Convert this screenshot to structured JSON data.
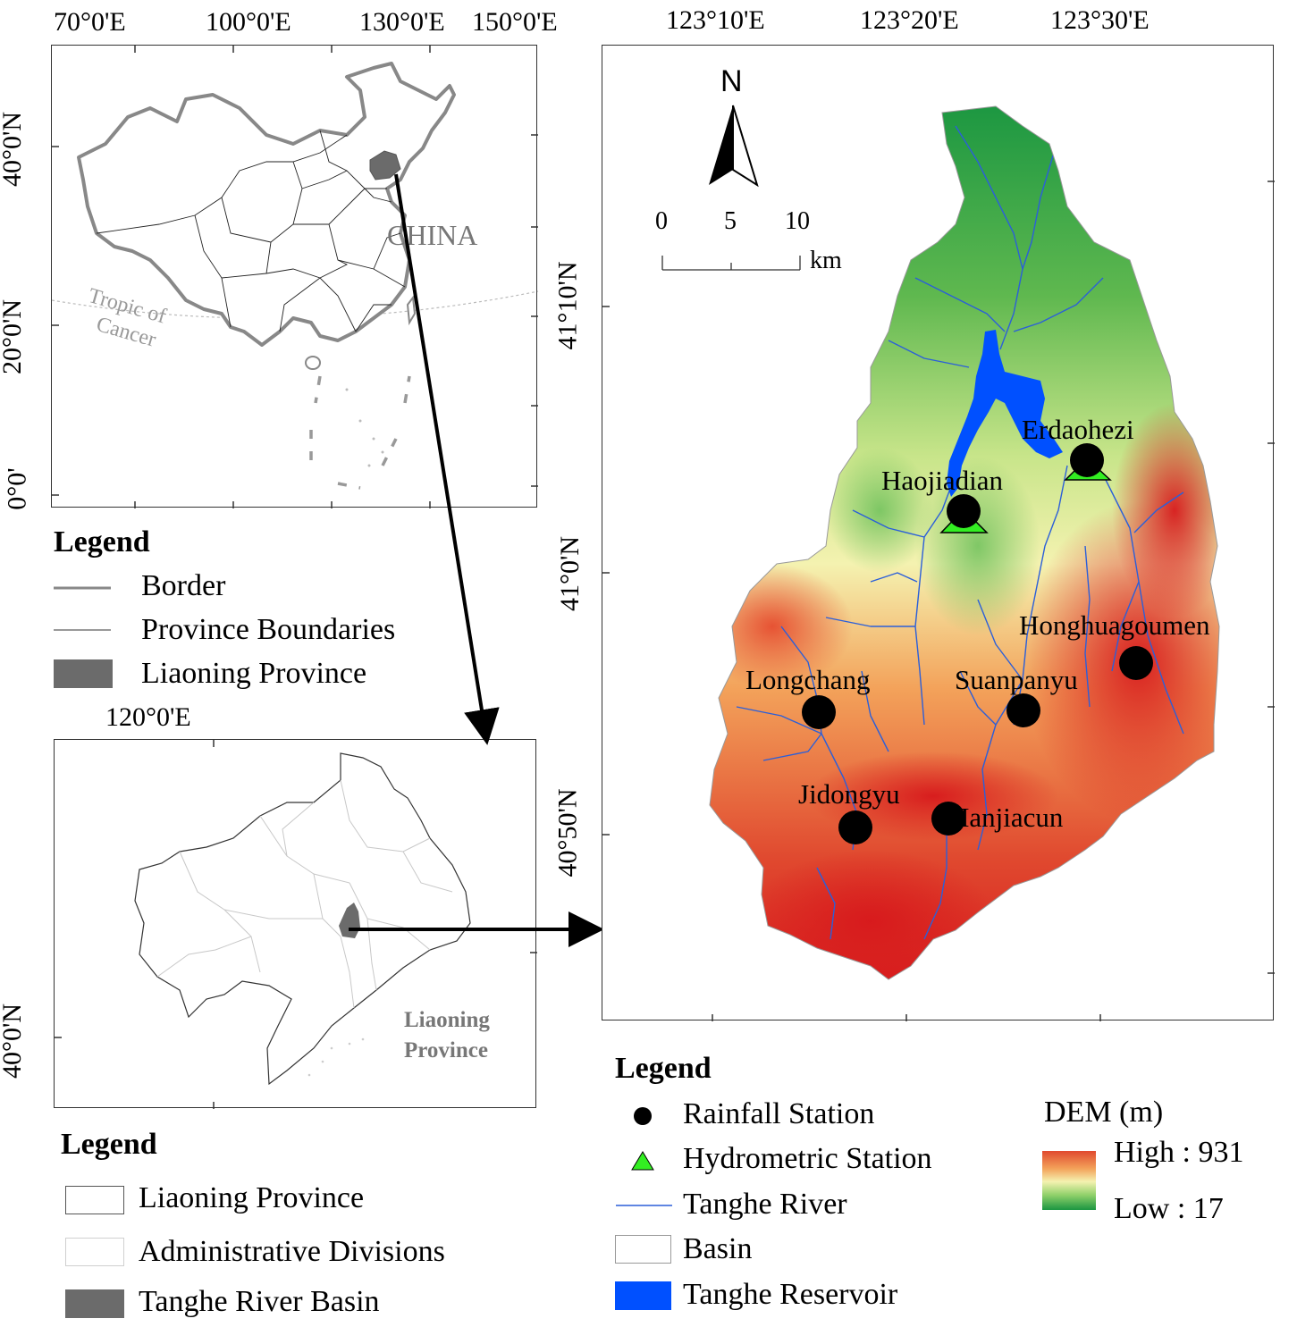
{
  "top_map": {
    "lon_labels": [
      "70°0'E",
      "100°0'E",
      "130°0'E",
      "150°0'E"
    ],
    "lat_labels": [
      "40°0'N",
      "20°0'N",
      "0°0'"
    ],
    "country_label": "CHINA",
    "tropic_label_1": "Tropic of",
    "tropic_label_2": "Cancer",
    "legend": {
      "title": "Legend",
      "items": [
        "Border",
        "Province Boundaries",
        "Liaoning Province"
      ]
    }
  },
  "mid_map": {
    "lon_label": "120°0'E",
    "lat_label": "40°0'N",
    "province_label_1": "Liaoning",
    "province_label_2": "Province",
    "legend": {
      "title": "Legend",
      "items": [
        "Liaoning Province",
        "Administrative Divisions",
        "Tanghe River Basin"
      ]
    }
  },
  "basin_map": {
    "lon_labels": [
      "123°10'E",
      "123°20'E",
      "123°30'E"
    ],
    "lat_labels": [
      "41°10'N",
      "41°0'N",
      "40°50'N"
    ],
    "north_label": "N",
    "scale": {
      "ticks": [
        "0",
        "5",
        "10"
      ],
      "unit": "km"
    },
    "stations": [
      {
        "name": "Erdaohezi",
        "rainfall": true,
        "hydrometric": true
      },
      {
        "name": "Haojiadian",
        "rainfall": true,
        "hydrometric": true
      },
      {
        "name": "Honghuagoumen",
        "rainfall": true,
        "hydrometric": false
      },
      {
        "name": "Longchang",
        "rainfall": true,
        "hydrometric": false
      },
      {
        "name": "Suanpanyu",
        "rainfall": true,
        "hydrometric": false
      },
      {
        "name": "Jidongyu",
        "rainfall": true,
        "hydrometric": false
      },
      {
        "name": "Hanjiacun",
        "rainfall": true,
        "hydrometric": false
      }
    ],
    "legend": {
      "title": "Legend",
      "items": [
        "Rainfall Station",
        "Hydrometric Station",
        "Tanghe River",
        "Basin",
        "Tanghe Reservoir"
      ],
      "dem_title": "DEM (m)",
      "dem_high": "High : 931",
      "dem_low": "Low : 17"
    },
    "colors": {
      "high": "#d7191c",
      "mid": "#ffffbf",
      "low": "#1a9641",
      "reservoir": "#0050ff",
      "river": "#2b5fd9",
      "hydro": "#33ee22"
    }
  }
}
